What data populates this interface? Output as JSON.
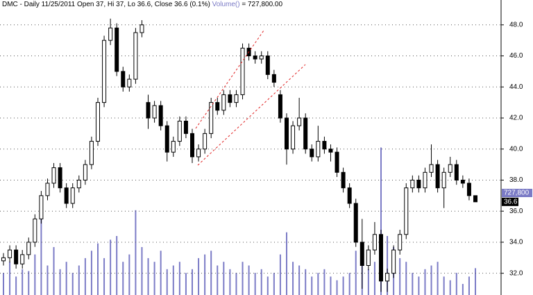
{
  "chart_data": {
    "type": "candlestick",
    "title": "DMC - Daily 11/25/2011 Open 37, Hi 37, Lo 36.6, Close 36.6 (0.1%)",
    "volume_label": "Volume()",
    "volume_value": "= 727,800.00",
    "last_volume_tag": "727,800",
    "up_color": "#ffffff",
    "down_color": "#000000",
    "volume_color": "#7b7bc6",
    "ylim": [
      30.6,
      49.6
    ],
    "yticks": [
      {
        "value": 32,
        "label": "32.0"
      },
      {
        "value": 34,
        "label": "34.0"
      },
      {
        "value": 36,
        "label": "36.0"
      },
      {
        "value": 38,
        "label": "38.0"
      },
      {
        "value": 40,
        "label": "40.0"
      },
      {
        "value": 42,
        "label": "42.0"
      },
      {
        "value": 44,
        "label": "44.0"
      },
      {
        "value": 46,
        "label": "46.0"
      },
      {
        "value": 48,
        "label": "48.0"
      }
    ],
    "y2lim": [
      0,
      8000000
    ],
    "grid": true,
    "open": [
      32.8,
      33.0,
      33.5,
      32.6,
      33.2,
      34.0,
      35.5,
      37.0,
      37.8,
      38.8,
      37.5,
      36.5,
      37.5,
      38.0,
      39.0,
      40.5,
      43.0,
      47.0,
      47.8,
      45.0,
      44.0,
      44.5,
      47.5,
      43.0,
      42.0,
      42.8,
      41.5,
      39.8,
      40.5,
      41.8,
      41.0,
      39.5,
      40.0,
      41.0,
      43.0,
      42.5,
      43.5,
      43.0,
      43.5,
      46.5,
      46.0,
      45.8,
      46.0,
      44.8,
      43.5,
      42.0,
      40.0,
      41.5,
      42.0,
      40.0,
      39.5,
      40.5,
      40.0,
      39.8,
      38.5,
      37.5,
      36.5,
      34.0,
      32.5,
      33.5,
      34.5,
      31.5,
      32.0,
      33.5,
      34.5,
      37.5,
      38.0,
      37.5,
      38.5,
      39.0,
      37.5,
      38.5,
      39.0,
      38.0,
      37.8,
      37.0
    ],
    "high": [
      33.3,
      33.8,
      33.8,
      33.5,
      34.3,
      35.8,
      37.3,
      38.1,
      39.1,
      39.1,
      37.8,
      37.8,
      38.3,
      39.3,
      40.8,
      43.3,
      47.3,
      48.4,
      48.1,
      45.3,
      44.8,
      47.8,
      48.3,
      43.5,
      43.1,
      43.1,
      41.8,
      40.8,
      42.1,
      42.1,
      41.3,
      40.3,
      41.3,
      43.3,
      43.3,
      43.8,
      43.8,
      43.8,
      46.8,
      46.8,
      46.3,
      46.3,
      46.3,
      45.1,
      43.8,
      42.3,
      41.8,
      43.3,
      42.3,
      40.3,
      41.5,
      40.8,
      40.3,
      40.1,
      38.8,
      37.8,
      36.8,
      35.5,
      33.8,
      35.3,
      34.8,
      32.3,
      33.8,
      34.8,
      37.8,
      38.3,
      38.3,
      38.8,
      40.3,
      39.3,
      38.8,
      39.5,
      39.3,
      38.3,
      38.1,
      37.0
    ],
    "low": [
      32.5,
      32.7,
      32.3,
      32.3,
      32.9,
      33.7,
      35.2,
      36.7,
      37.5,
      37.2,
      36.2,
      36.2,
      37.2,
      37.7,
      38.7,
      40.2,
      42.7,
      46.7,
      44.7,
      43.7,
      43.7,
      44.2,
      47.2,
      41.3,
      41.7,
      41.2,
      39.2,
      39.5,
      40.2,
      40.7,
      39.1,
      39.2,
      39.7,
      40.7,
      42.2,
      42.2,
      42.7,
      42.7,
      43.2,
      45.7,
      45.5,
      45.5,
      44.5,
      44.0,
      41.7,
      39.0,
      39.7,
      41.2,
      39.7,
      39.2,
      39.2,
      39.7,
      39.2,
      38.2,
      37.2,
      36.2,
      33.7,
      31.0,
      32.2,
      33.2,
      30.8,
      30.8,
      31.7,
      33.2,
      34.2,
      37.2,
      37.2,
      37.2,
      38.2,
      37.2,
      36.2,
      38.2,
      37.7,
      37.5,
      36.7,
      36.6
    ],
    "close": [
      33.0,
      33.5,
      32.6,
      33.2,
      34.0,
      35.5,
      37.0,
      37.8,
      38.8,
      37.5,
      36.5,
      37.5,
      38.0,
      39.0,
      40.5,
      43.0,
      47.0,
      47.8,
      45.0,
      44.0,
      44.5,
      47.5,
      48.0,
      42.0,
      42.8,
      41.5,
      39.8,
      40.5,
      41.8,
      41.0,
      39.5,
      40.0,
      41.0,
      43.0,
      42.5,
      43.5,
      43.0,
      43.5,
      46.5,
      46.0,
      45.8,
      46.0,
      44.8,
      44.3,
      42.0,
      40.0,
      41.5,
      42.0,
      40.0,
      39.5,
      40.5,
      40.0,
      39.8,
      38.5,
      37.5,
      36.5,
      34.0,
      32.5,
      33.5,
      34.5,
      31.5,
      32.0,
      33.5,
      34.5,
      37.5,
      38.0,
      37.5,
      38.5,
      39.0,
      37.5,
      38.5,
      39.0,
      38.0,
      37.8,
      37.0,
      36.6
    ],
    "volume": [
      600000,
      900000,
      500000,
      700000,
      650000,
      1100000,
      2200000,
      800000,
      1300000,
      700000,
      900000,
      600000,
      800000,
      1000000,
      1200000,
      1400000,
      1000000,
      1500000,
      1600000,
      900000,
      1100000,
      2300000,
      1300000,
      1000000,
      900000,
      1200000,
      700000,
      800000,
      900000,
      600000,
      700000,
      1000000,
      1100000,
      1200000,
      800000,
      900000,
      700000,
      600000,
      900000,
      800000,
      600000,
      700000,
      500000,
      600000,
      1100000,
      1700000,
      900000,
      800000,
      700000,
      500000,
      600000,
      700000,
      500000,
      400000,
      500000,
      600000,
      1200000,
      800000,
      700000,
      900000,
      4000000,
      1600000,
      1300000,
      1000000,
      900000,
      600000,
      500000,
      700000,
      800000,
      900000,
      500000,
      400000,
      600000,
      300000,
      500000,
      727800
    ]
  }
}
